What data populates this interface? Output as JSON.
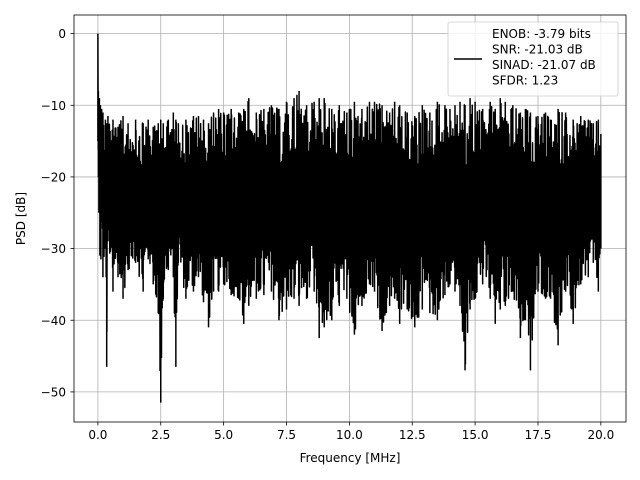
{
  "chart_data": {
    "type": "line",
    "title": "",
    "xlabel": "Frequency [MHz]",
    "ylabel": "PSD [dB]",
    "xlim": [
      -0.95,
      21.0
    ],
    "ylim": [
      -54.2,
      2.6
    ],
    "x_ticks": [
      0.0,
      2.5,
      5.0,
      7.5,
      10.0,
      12.5,
      15.0,
      17.5,
      20.0
    ],
    "x_tick_labels": [
      "0.0",
      "2.5",
      "5.0",
      "7.5",
      "10.0",
      "12.5",
      "15.0",
      "17.5",
      "20.0"
    ],
    "y_ticks": [
      0,
      -10,
      -20,
      -30,
      -40,
      -50
    ],
    "y_tick_labels": [
      "0",
      "−10",
      "−20",
      "−30",
      "−40",
      "−50"
    ],
    "grid": true,
    "legend_position": "top-right",
    "line_color": "#000000",
    "series": [
      {
        "name": "ENOB: -3.79 bits\nSNR: -21.03 dB\nSINAD: -21.07 dB\nSFDR: 1.23",
        "x": [
          0.0,
          0.02,
          0.04,
          0.06,
          0.08,
          0.1,
          0.12,
          0.15,
          0.2,
          0.3,
          0.35,
          0.4,
          0.6,
          0.8,
          1.0,
          1.2,
          1.5,
          1.8,
          2.0,
          2.2,
          2.4,
          2.5,
          2.6,
          2.8,
          3.0,
          3.1,
          3.2,
          3.5,
          3.8,
          4.0,
          4.2,
          4.4,
          4.6,
          4.8,
          5.0,
          5.3,
          5.6,
          5.8,
          6.0,
          6.3,
          6.6,
          6.9,
          7.2,
          7.5,
          7.8,
          8.0,
          8.3,
          8.6,
          8.8,
          9.0,
          9.3,
          9.6,
          9.9,
          10.2,
          10.5,
          10.8,
          11.0,
          11.3,
          11.6,
          11.8,
          12.0,
          12.3,
          12.6,
          12.9,
          13.2,
          13.5,
          13.8,
          14.0,
          14.2,
          14.4,
          14.6,
          14.8,
          15.0,
          15.3,
          15.6,
          15.8,
          16.0,
          16.2,
          16.5,
          16.8,
          17.0,
          17.2,
          17.5,
          17.8,
          18.0,
          18.3,
          18.6,
          18.9,
          19.2,
          19.5,
          19.7,
          19.9,
          20.0
        ],
        "upper_envelope": [
          0.0,
          -8.0,
          -12.0,
          -9.0,
          -11.0,
          -10.0,
          -12.0,
          -10.5,
          -11.0,
          -12.0,
          -12.5,
          -11.5,
          -12.0,
          -13.0,
          -11.5,
          -12.5,
          -12.0,
          -12.5,
          -12.0,
          -13.0,
          -12.5,
          -12.0,
          -12.5,
          -12.0,
          -11.0,
          -12.0,
          -12.5,
          -12.0,
          -11.5,
          -11.5,
          -12.0,
          -12.5,
          -11.0,
          -10.5,
          -11.0,
          -10.5,
          -11.0,
          -10.5,
          -9.0,
          -11.0,
          -10.5,
          -10.0,
          -10.5,
          -9.5,
          -9.0,
          -8.0,
          -10.0,
          -9.5,
          -9.0,
          -9.0,
          -10.5,
          -10.0,
          -11.0,
          -9.5,
          -10.5,
          -9.5,
          -9.5,
          -10.0,
          -11.0,
          -9.5,
          -10.0,
          -11.0,
          -11.5,
          -10.0,
          -11.0,
          -9.5,
          -10.0,
          -10.5,
          -10.0,
          -9.5,
          -10.0,
          -9.0,
          -9.5,
          -10.5,
          -9.5,
          -10.5,
          -9.0,
          -9.5,
          -10.0,
          -11.0,
          -10.5,
          -11.0,
          -11.5,
          -11.0,
          -12.0,
          -10.5,
          -11.0,
          -12.0,
          -11.5,
          -12.0,
          -12.5,
          -12.0,
          -14.0
        ],
        "lower_envelope": [
          -15.0,
          -20.0,
          -25.0,
          -22.0,
          -31.0,
          -28.0,
          -31.5,
          -26.0,
          -34.0,
          -30.0,
          -46.5,
          -29.0,
          -36.0,
          -34.0,
          -37.0,
          -33.0,
          -32.0,
          -36.0,
          -31.5,
          -35.0,
          -39.0,
          -51.5,
          -37.0,
          -33.0,
          -34.0,
          -46.5,
          -32.0,
          -37.0,
          -36.0,
          -34.0,
          -37.5,
          -41.0,
          -36.0,
          -36.0,
          -35.0,
          -36.5,
          -37.0,
          -40.5,
          -38.0,
          -37.0,
          -36.5,
          -36.0,
          -40.0,
          -38.5,
          -37.0,
          -38.0,
          -37.0,
          -36.0,
          -42.5,
          -41.0,
          -40.0,
          -38.0,
          -37.0,
          -42.0,
          -38.0,
          -35.0,
          -36.0,
          -41.5,
          -38.0,
          -37.0,
          -40.5,
          -38.5,
          -41.0,
          -38.5,
          -39.0,
          -40.0,
          -36.5,
          -35.0,
          -36.0,
          -38.0,
          -47.0,
          -38.5,
          -37.0,
          -35.0,
          -37.0,
          -40.5,
          -38.5,
          -38.0,
          -36.0,
          -42.5,
          -40.0,
          -47.0,
          -36.0,
          -37.0,
          -37.0,
          -43.5,
          -36.0,
          -40.5,
          -35.0,
          -34.0,
          -32.0,
          -36.0,
          -30.0
        ]
      }
    ]
  }
}
